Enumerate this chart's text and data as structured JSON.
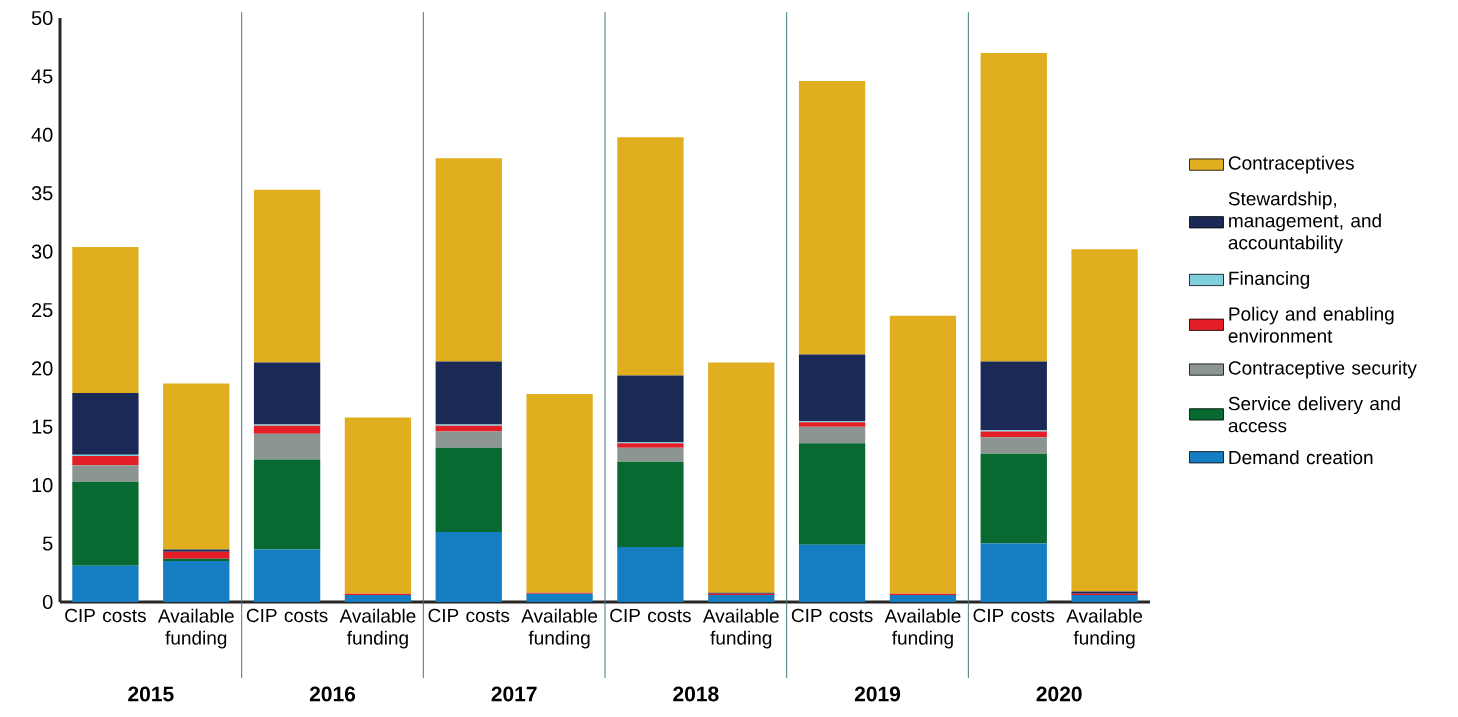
{
  "chart_data": {
    "type": "bar",
    "stacked": true,
    "categories": [
      "CIP costs",
      "Available funding",
      "CIP costs",
      "Available funding",
      "CIP costs",
      "Available funding",
      "CIP costs",
      "Available funding",
      "CIP costs",
      "Available funding",
      "CIP costs",
      "Available funding"
    ],
    "series": [
      {
        "name": "Demand creation",
        "color": "#157ec2",
        "values": [
          3.1,
          3.5,
          4.5,
          0.6,
          6.0,
          0.7,
          4.7,
          0.6,
          4.9,
          0.6,
          5.0,
          0.6
        ]
      },
      {
        "name": "Service delivery and access",
        "color": "#086a30",
        "values": [
          7.2,
          0.2,
          7.7,
          0,
          7.2,
          0,
          7.3,
          0,
          8.7,
          0,
          7.7,
          0
        ]
      },
      {
        "name": "Contraceptive security",
        "color": "#8c9592",
        "values": [
          1.4,
          0,
          2.2,
          0,
          1.4,
          0,
          1.2,
          0,
          1.4,
          0,
          1.4,
          0
        ]
      },
      {
        "name": "Policy and enabling environment",
        "color": "#e31e26",
        "values": [
          0.8,
          0.6,
          0.7,
          0.1,
          0.5,
          0.1,
          0.4,
          0.1,
          0.4,
          0.1,
          0.5,
          0.1
        ]
      },
      {
        "name": "Financing",
        "color": "#7fcfdc",
        "values": [
          0.1,
          0,
          0.1,
          0,
          0.1,
          0,
          0.1,
          0,
          0.1,
          0,
          0.1,
          0
        ]
      },
      {
        "name": "Stewardship, management, and accountability",
        "color": "#1b2956",
        "values": [
          5.3,
          0.2,
          5.3,
          0,
          5.4,
          0,
          5.7,
          0.1,
          5.7,
          0,
          5.9,
          0.2
        ]
      },
      {
        "name": "Contraceptives",
        "color": "#e1ae20",
        "values": [
          12.5,
          14.2,
          14.8,
          15.1,
          17.4,
          17.0,
          20.4,
          19.7,
          23.4,
          23.8,
          26.4,
          29.3
        ]
      }
    ],
    "annotations": [
      "2015",
      "2016",
      "2017",
      "2018",
      "2019",
      "2020"
    ],
    "ylim": [
      0,
      50
    ],
    "yticks": [
      0,
      5,
      10,
      15,
      20,
      25,
      30,
      35,
      40,
      45,
      50
    ],
    "legend": "right"
  }
}
